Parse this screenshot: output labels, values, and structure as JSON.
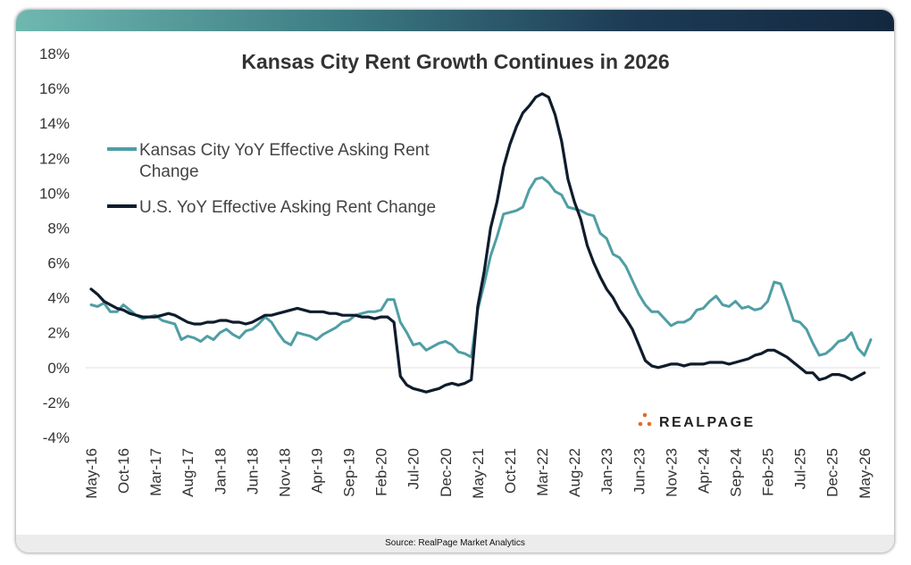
{
  "chart_data": {
    "type": "line",
    "title": "Kansas City Rent Growth Continues in 2026",
    "source": "Source: RealPage Market Analytics",
    "brand": "REALPAGE",
    "ylim": [
      -4,
      18
    ],
    "y_ticks": [
      -4,
      -2,
      0,
      2,
      4,
      6,
      8,
      10,
      12,
      14,
      16,
      18
    ],
    "y_tick_labels": [
      "-4%",
      "-2%",
      "0%",
      "2%",
      "4%",
      "6%",
      "8%",
      "10%",
      "12%",
      "14%",
      "16%",
      "18%"
    ],
    "x_start": "May-16",
    "x_end": "May-26",
    "x_tick_labels": [
      "May-16",
      "Oct-16",
      "Mar-17",
      "Aug-17",
      "Jan-18",
      "Jun-18",
      "Nov-18",
      "Apr-19",
      "Sep-19",
      "Feb-20",
      "Jul-20",
      "Dec-20",
      "May-21",
      "Oct-21",
      "Mar-22",
      "Aug-22",
      "Jan-23",
      "Jun-23",
      "Nov-23",
      "Apr-24",
      "Sep-24",
      "Feb-25",
      "Jul-25",
      "Dec-25",
      "May-26"
    ],
    "grid": false,
    "legend_position": "top-left",
    "series": [
      {
        "name": "Kansas City YoY Effective Asking Rent Change",
        "color": "#4f9ea4",
        "values": [
          3.6,
          3.5,
          3.7,
          3.2,
          3.2,
          3.6,
          3.3,
          3.0,
          2.8,
          2.9,
          3.0,
          2.7,
          2.6,
          2.5,
          1.6,
          1.8,
          1.7,
          1.5,
          1.8,
          1.6,
          2.0,
          2.2,
          1.9,
          1.7,
          2.1,
          2.2,
          2.5,
          2.9,
          2.6,
          2.0,
          1.5,
          1.3,
          2.0,
          1.9,
          1.8,
          1.6,
          1.9,
          2.1,
          2.3,
          2.6,
          2.7,
          3.0,
          3.1,
          3.2,
          3.2,
          3.3,
          3.9,
          3.9,
          2.6,
          2.0,
          1.3,
          1.4,
          1.0,
          1.2,
          1.4,
          1.5,
          1.3,
          0.9,
          0.8,
          0.6,
          3.3,
          4.8,
          6.4,
          7.5,
          8.8,
          8.9,
          9.0,
          9.2,
          10.2,
          10.8,
          10.9,
          10.6,
          10.1,
          9.9,
          9.2,
          9.1,
          9.0,
          8.8,
          8.7,
          7.7,
          7.4,
          6.5,
          6.3,
          5.8,
          5.0,
          4.2,
          3.6,
          3.2,
          3.2,
          2.8,
          2.4,
          2.6,
          2.6,
          2.8,
          3.3,
          3.4,
          3.8,
          4.1,
          3.6,
          3.5,
          3.8,
          3.4,
          3.5,
          3.3,
          3.4,
          3.8,
          4.9,
          4.8,
          3.8,
          2.7,
          2.6,
          2.2,
          1.4,
          0.7,
          0.8,
          1.1,
          1.5,
          1.6,
          2.0,
          1.1,
          0.7,
          1.6
        ]
      },
      {
        "name": "U.S. YoY Effective Asking Rent Change",
        "color": "#0f1c2c",
        "values": [
          4.5,
          4.2,
          3.8,
          3.6,
          3.4,
          3.3,
          3.1,
          3.0,
          2.9,
          2.9,
          2.9,
          3.0,
          3.1,
          3.0,
          2.8,
          2.6,
          2.5,
          2.5,
          2.6,
          2.6,
          2.7,
          2.7,
          2.6,
          2.6,
          2.5,
          2.6,
          2.8,
          3.0,
          3.0,
          3.1,
          3.2,
          3.3,
          3.4,
          3.3,
          3.2,
          3.2,
          3.2,
          3.1,
          3.1,
          3.0,
          3.0,
          3.0,
          2.9,
          2.9,
          2.8,
          2.9,
          2.9,
          2.6,
          -0.5,
          -1.0,
          -1.2,
          -1.3,
          -1.4,
          -1.3,
          -1.2,
          -1.0,
          -0.9,
          -1.0,
          -0.9,
          -0.7,
          3.5,
          5.5,
          8.0,
          9.5,
          11.5,
          12.8,
          13.8,
          14.6,
          15.0,
          15.5,
          15.7,
          15.5,
          14.5,
          13.0,
          10.8,
          9.5,
          8.5,
          7.0,
          6.0,
          5.2,
          4.5,
          4.0,
          3.3,
          2.8,
          2.2,
          1.3,
          0.4,
          0.1,
          0.0,
          0.1,
          0.2,
          0.2,
          0.1,
          0.2,
          0.2,
          0.2,
          0.3,
          0.3,
          0.3,
          0.2,
          0.3,
          0.4,
          0.5,
          0.7,
          0.8,
          1.0,
          1.0,
          0.8,
          0.6,
          0.3,
          0.0,
          -0.3,
          -0.3,
          -0.7,
          -0.6,
          -0.4,
          -0.4,
          -0.5,
          -0.7,
          -0.5,
          -0.3
        ]
      }
    ]
  }
}
